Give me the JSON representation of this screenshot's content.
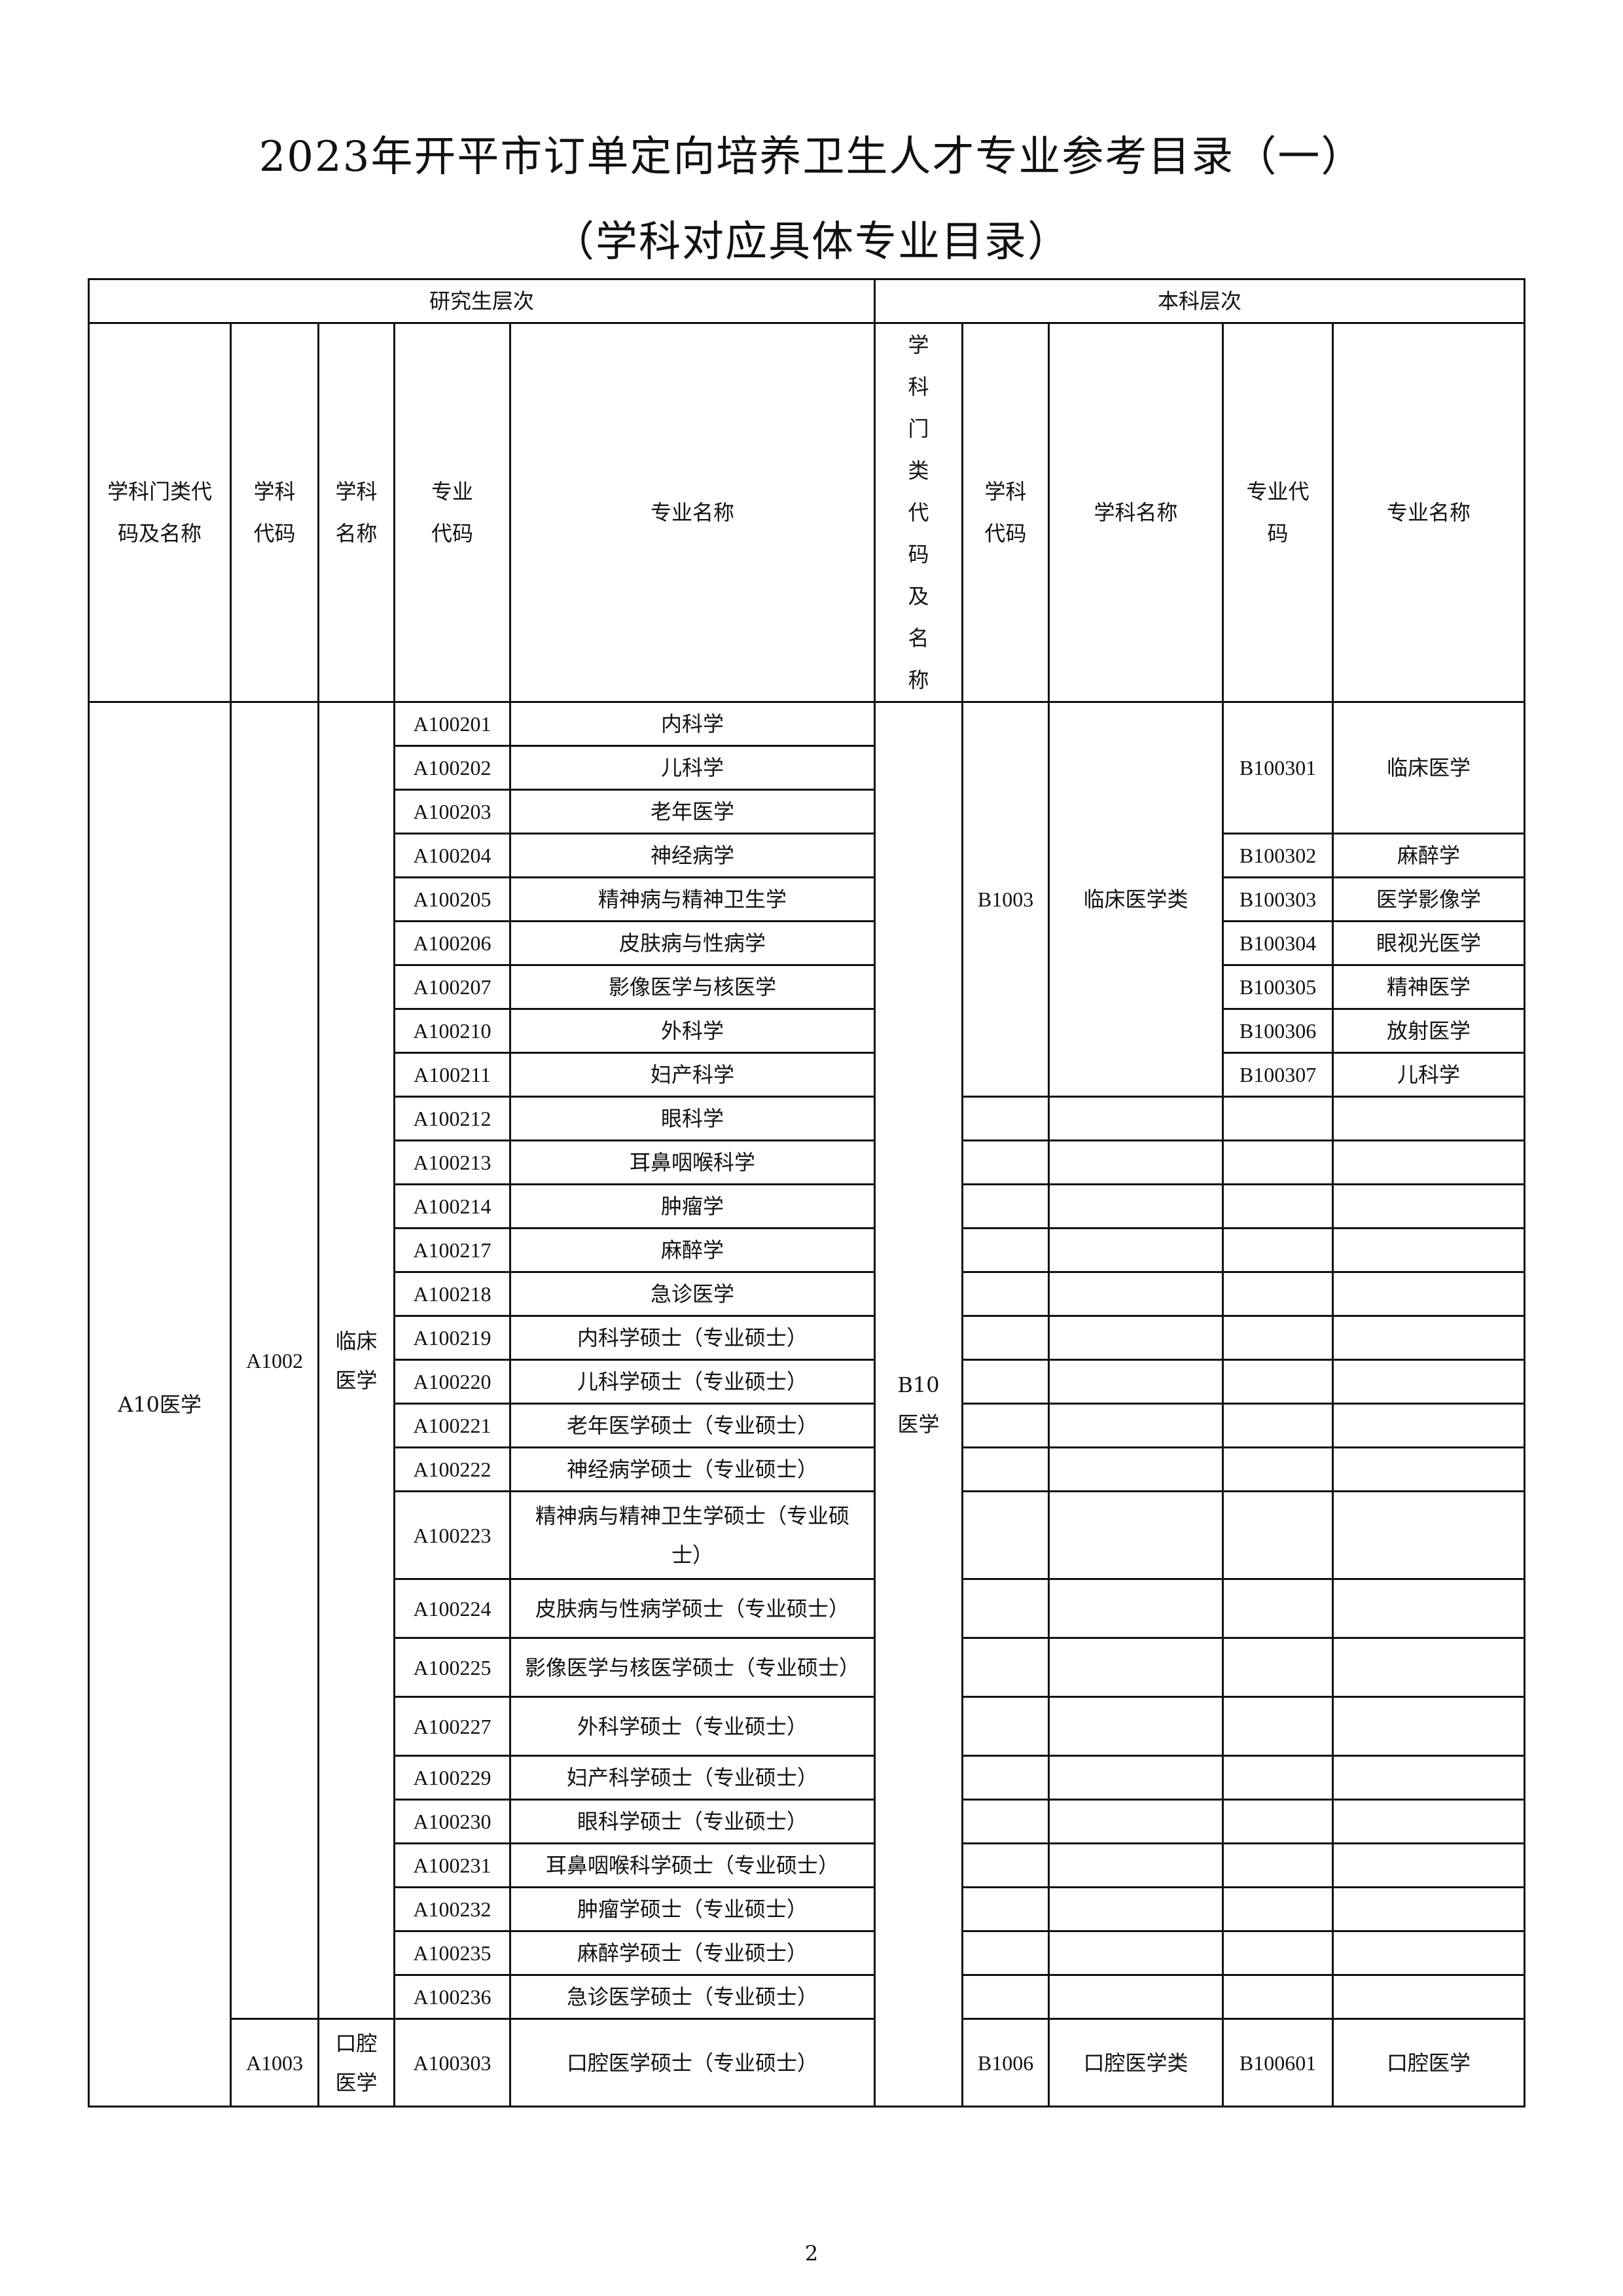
{
  "title": "2023年开平市订单定向培养卫生人才专业参考目录（一）",
  "subtitle": "（学科对应具体专业目录）",
  "header": {
    "graduate_level": "研究生层次",
    "undergrad_level": "本科层次",
    "grad_columns": [
      "学科门类代码及名称",
      "学科代码",
      "学科名称",
      "专业代码",
      "专业名称"
    ],
    "undergrad_columns": [
      "学科门类代码及名称",
      "学科代码",
      "学科名称",
      "专业代码",
      "专业名称"
    ]
  },
  "graduate": {
    "category": "A10医学",
    "disciplines": [
      {
        "code": "A1002",
        "name": "临床医学",
        "majors": [
          {
            "code": "A100201",
            "name": "内科学"
          },
          {
            "code": "A100202",
            "name": "儿科学"
          },
          {
            "code": "A100203",
            "name": "老年医学"
          },
          {
            "code": "A100204",
            "name": "神经病学"
          },
          {
            "code": "A100205",
            "name": "精神病与精神卫生学"
          },
          {
            "code": "A100206",
            "name": "皮肤病与性病学"
          },
          {
            "code": "A100207",
            "name": "影像医学与核医学"
          },
          {
            "code": "A100210",
            "name": "外科学"
          },
          {
            "code": "A100211",
            "name": "妇产科学"
          },
          {
            "code": "A100212",
            "name": "眼科学"
          },
          {
            "code": "A100213",
            "name": "耳鼻咽喉科学"
          },
          {
            "code": "A100214",
            "name": "肿瘤学"
          },
          {
            "code": "A100217",
            "name": "麻醉学"
          },
          {
            "code": "A100218",
            "name": "急诊医学"
          },
          {
            "code": "A100219",
            "name": "内科学硕士（专业硕士）"
          },
          {
            "code": "A100220",
            "name": "儿科学硕士（专业硕士）"
          },
          {
            "code": "A100221",
            "name": "老年医学硕士（专业硕士）"
          },
          {
            "code": "A100222",
            "name": "神经病学硕士（专业硕士）"
          },
          {
            "code": "A100223",
            "name": "精神病与精神卫生学硕士（专业硕士）"
          },
          {
            "code": "A100224",
            "name": "皮肤病与性病学硕士（专业硕士）"
          },
          {
            "code": "A100225",
            "name": "影像医学与核医学硕士（专业硕士）"
          },
          {
            "code": "A100227",
            "name": "外科学硕士（专业硕士）"
          },
          {
            "code": "A100229",
            "name": "妇产科学硕士（专业硕士）"
          },
          {
            "code": "A100230",
            "name": "眼科学硕士（专业硕士）"
          },
          {
            "code": "A100231",
            "name": "耳鼻咽喉科学硕士（专业硕士）"
          },
          {
            "code": "A100232",
            "name": "肿瘤学硕士（专业硕士）"
          },
          {
            "code": "A100235",
            "name": "麻醉学硕士（专业硕士）"
          },
          {
            "code": "A100236",
            "name": "急诊医学硕士（专业硕士）"
          }
        ]
      },
      {
        "code": "A1003",
        "name": "口腔医学",
        "majors": [
          {
            "code": "A100303",
            "name": "口腔医学硕士（专业硕士）"
          }
        ]
      }
    ]
  },
  "undergrad": {
    "category": "B10医学",
    "disciplines": [
      {
        "code": "B1003",
        "name": "临床医学类",
        "majors": [
          {
            "code": "B100301",
            "name": "临床医学"
          },
          {
            "code": "B100302",
            "name": "麻醉学"
          },
          {
            "code": "B100303",
            "name": "医学影像学"
          },
          {
            "code": "B100304",
            "name": "眼视光医学"
          },
          {
            "code": "B100305",
            "name": "精神医学"
          },
          {
            "code": "B100306",
            "name": "放射医学"
          },
          {
            "code": "B100307",
            "name": "儿科学"
          }
        ]
      },
      {
        "code": "B1006",
        "name": "口腔医学类",
        "majors": [
          {
            "code": "B100601",
            "name": "口腔医学"
          }
        ]
      }
    ]
  },
  "page_number": "2"
}
